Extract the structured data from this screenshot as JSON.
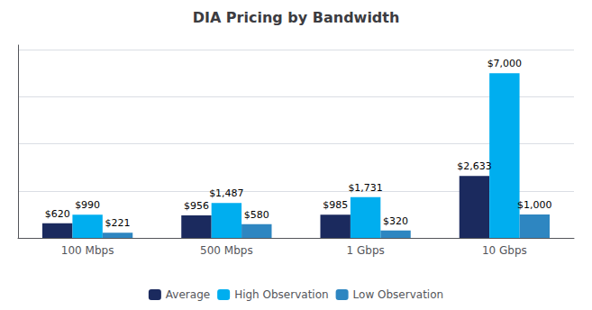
{
  "chart_data": {
    "type": "bar",
    "title": "DIA Pricing by Bandwidth",
    "categories": [
      "100 Mbps",
      "500 Mbps",
      "1 Gbps",
      "10 Gbps"
    ],
    "series": [
      {
        "name": "Average",
        "color": "#1B2A5E",
        "values": [
          620,
          956,
          985,
          2633
        ],
        "value_labels": [
          "$620",
          "$956",
          "$985",
          "$2,633"
        ]
      },
      {
        "name": "High Observation",
        "color": "#00AEEF",
        "values": [
          990,
          1487,
          1731,
          7000
        ],
        "value_labels": [
          "$990",
          "$1,487",
          "$1,731",
          "$7,000"
        ]
      },
      {
        "name": "Low Observation",
        "color": "#2E86C1",
        "values": [
          221,
          580,
          320,
          1000
        ],
        "value_labels": [
          "$221",
          "$580",
          "$320",
          "$1,000"
        ]
      }
    ],
    "ylim": [
      0,
      8200
    ],
    "yticks": [
      0,
      2000,
      4000,
      6000,
      8000
    ],
    "grid": true,
    "legend": "bottom",
    "data_labels": true,
    "tick_labels": "x"
  }
}
